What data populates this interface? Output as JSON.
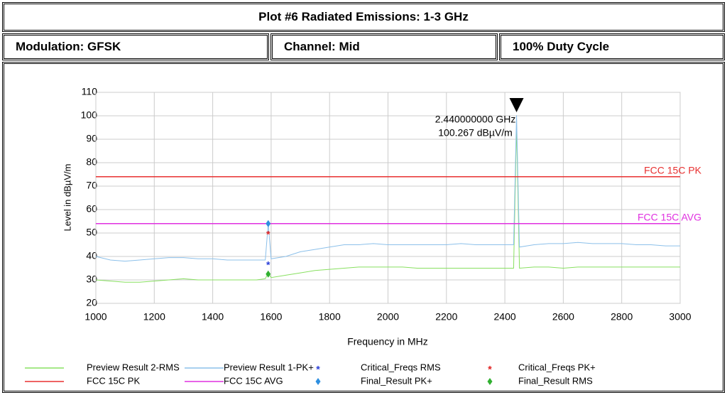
{
  "header": {
    "title": "Plot #6 Radiated Emissions: 1-3 GHz",
    "cells": [
      "Modulation: GFSK",
      "Channel: Mid",
      "100% Duty Cycle"
    ]
  },
  "chart_data": {
    "type": "line",
    "xlabel": "Frequency in MHz",
    "ylabel": "Level in dBµV/m",
    "xlim": [
      1000,
      3000
    ],
    "ylim": [
      20,
      110
    ],
    "xticks": [
      1000,
      1200,
      1400,
      1600,
      1800,
      2000,
      2200,
      2400,
      2600,
      2800,
      3000
    ],
    "yticks": [
      20,
      30,
      40,
      50,
      60,
      70,
      80,
      90,
      100,
      110
    ],
    "grid": true,
    "annotation": {
      "x": 2440,
      "lines": [
        "2.440000000 GHz",
        "100.267 dBµV/m"
      ]
    },
    "series": [
      {
        "name": "Preview Result 2-RMS",
        "color": "#88e060",
        "marker": "line",
        "x": [
          1000,
          1050,
          1100,
          1150,
          1200,
          1250,
          1300,
          1350,
          1400,
          1450,
          1500,
          1550,
          1580,
          1590,
          1600,
          1650,
          1700,
          1750,
          1800,
          1850,
          1900,
          1950,
          2000,
          2050,
          2100,
          2150,
          2200,
          2250,
          2300,
          2350,
          2400,
          2430,
          2440,
          2450,
          2500,
          2550,
          2600,
          2650,
          2700,
          2750,
          2800,
          2850,
          2900,
          2950,
          3000
        ],
        "values": [
          30,
          29.5,
          29,
          29,
          29.5,
          30,
          30.5,
          30,
          30,
          30,
          30,
          30,
          30.5,
          33,
          31,
          32,
          33,
          34,
          34.5,
          35,
          35.5,
          35.5,
          35.5,
          35.5,
          35,
          35,
          35,
          35,
          35,
          35,
          35,
          35,
          96,
          35,
          35.5,
          35.5,
          35,
          35.5,
          35.5,
          35.5,
          35.5,
          35.5,
          35.5,
          35.5,
          35.5
        ]
      },
      {
        "name": "Preview Result 1-PK+",
        "color": "#8cc0ea",
        "marker": "line",
        "x": [
          1000,
          1050,
          1100,
          1150,
          1200,
          1250,
          1300,
          1350,
          1400,
          1450,
          1500,
          1550,
          1580,
          1590,
          1600,
          1650,
          1700,
          1750,
          1800,
          1850,
          1900,
          1950,
          2000,
          2050,
          2100,
          2150,
          2200,
          2250,
          2300,
          2350,
          2400,
          2430,
          2440,
          2450,
          2500,
          2550,
          2600,
          2650,
          2700,
          2750,
          2800,
          2850,
          2900,
          2950,
          3000
        ],
        "values": [
          40,
          38.5,
          38,
          38.5,
          39,
          39.5,
          39.5,
          39,
          39,
          38.5,
          38.5,
          38.5,
          38.5,
          54,
          39,
          40,
          42,
          43,
          44,
          45,
          45,
          45.5,
          45,
          45,
          45,
          45,
          45,
          45.5,
          45,
          45,
          45,
          45,
          100.267,
          44,
          45,
          45.5,
          45.5,
          46,
          45.5,
          45.5,
          45.5,
          45,
          45,
          44.5,
          44.5
        ]
      },
      {
        "name": "Critical_Freqs RMS",
        "color": "#2a3fd8",
        "marker": "star",
        "x": [
          1590
        ],
        "values": [
          37
        ]
      },
      {
        "name": "Critical_Freqs PK+",
        "color": "#e02020",
        "marker": "star",
        "x": [
          1590
        ],
        "values": [
          50
        ]
      },
      {
        "name": "FCC 15C PK",
        "color": "#e83030",
        "marker": "limit",
        "x": [
          1000,
          3000
        ],
        "values": [
          74,
          74
        ]
      },
      {
        "name": "FCC 15C AVG",
        "color": "#e030e0",
        "marker": "limit",
        "x": [
          1000,
          3000
        ],
        "values": [
          54,
          54
        ]
      },
      {
        "name": "Final_Result PK+",
        "color": "#2e8fe0",
        "marker": "diamond",
        "x": [
          1590
        ],
        "values": [
          54
        ]
      },
      {
        "name": "Final_Result RMS",
        "color": "#30b030",
        "marker": "diamond",
        "x": [
          1590
        ],
        "values": [
          32.5
        ]
      }
    ]
  }
}
